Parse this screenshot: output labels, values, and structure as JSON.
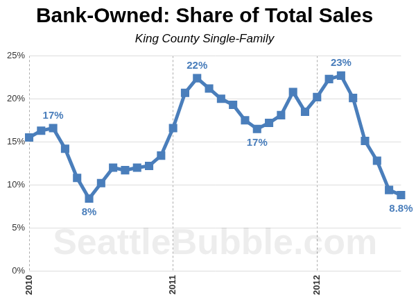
{
  "chart_data": {
    "type": "line",
    "title": "Bank-Owned: Share of Total Sales",
    "subtitle": "King County Single-Family",
    "watermark": "SeattleBubble.com",
    "categories": [
      "2010",
      null,
      null,
      null,
      null,
      null,
      null,
      null,
      null,
      null,
      null,
      null,
      "2011",
      null,
      null,
      null,
      null,
      null,
      null,
      null,
      null,
      null,
      null,
      null,
      "2012",
      null,
      null,
      null,
      null,
      null,
      null,
      null
    ],
    "values": [
      15.5,
      16.3,
      16.6,
      14.2,
      10.8,
      8.4,
      10.2,
      12.0,
      11.7,
      12.0,
      12.2,
      13.4,
      16.6,
      20.7,
      22.4,
      21.2,
      20.0,
      19.3,
      17.5,
      16.5,
      17.2,
      18.1,
      20.8,
      18.5,
      20.2,
      22.3,
      22.7,
      20.1,
      15.1,
      12.8,
      9.4,
      8.8
    ],
    "value_labels": [
      null,
      null,
      "17%",
      null,
      null,
      "8%",
      null,
      null,
      null,
      null,
      null,
      null,
      null,
      null,
      "22%",
      null,
      null,
      null,
      null,
      "17%",
      null,
      null,
      null,
      null,
      null,
      null,
      "23%",
      null,
      null,
      null,
      null,
      "8.8%"
    ],
    "data_labels": true,
    "color": "#4a7ebb",
    "marker": "square",
    "ylim": [
      0,
      25
    ],
    "yticks": [
      {
        "value": 0,
        "label": "0%"
      },
      {
        "value": 5,
        "label": "5%"
      },
      {
        "value": 10,
        "label": "10%"
      },
      {
        "value": 15,
        "label": "15%"
      },
      {
        "value": 20,
        "label": "20%"
      },
      {
        "value": 25,
        "label": "25%"
      }
    ],
    "grid": true
  }
}
